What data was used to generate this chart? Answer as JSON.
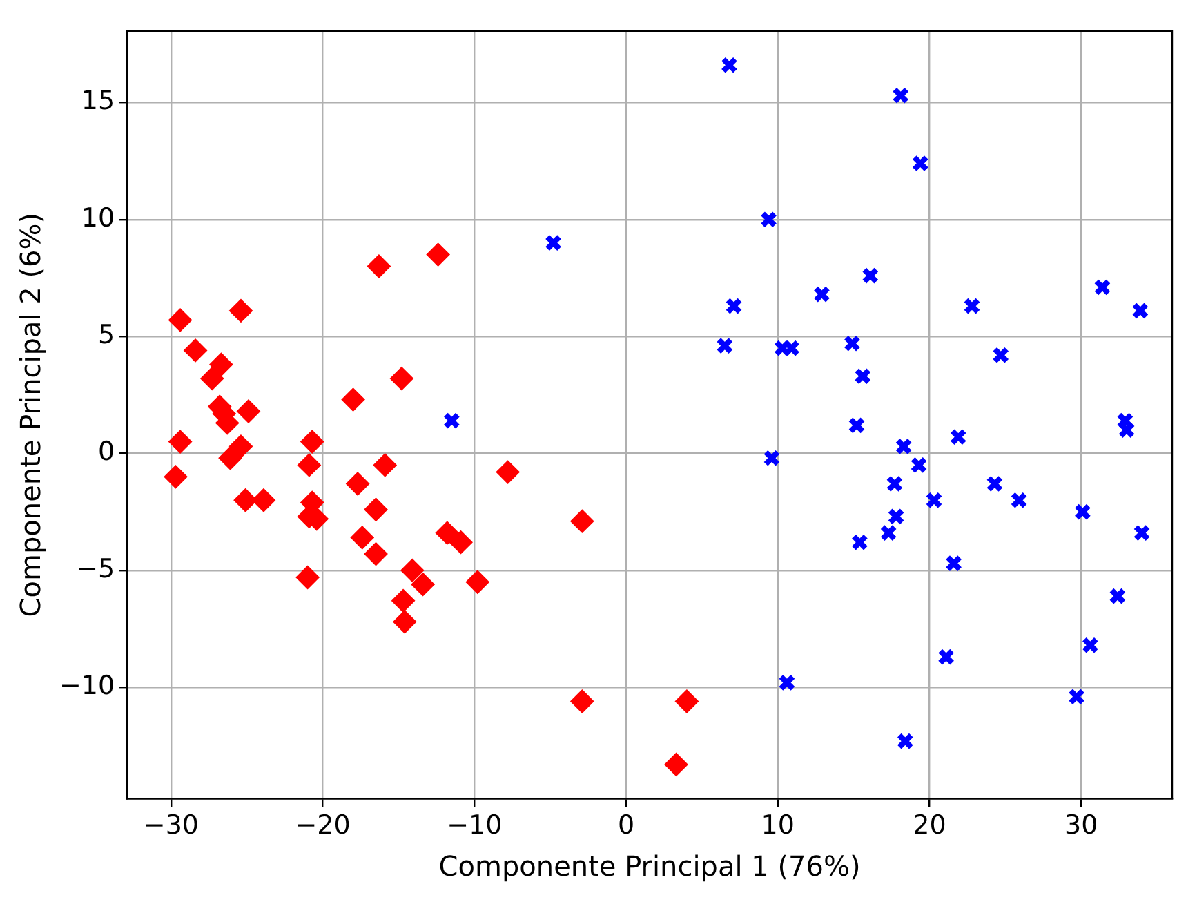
{
  "chart_data": {
    "type": "scatter",
    "xlabel": "Componente Principal 1 (76%)",
    "ylabel": "Componente Principal 2 (6%)",
    "xlim": [
      -32.9,
      36.0
    ],
    "ylim": [
      -14.76,
      18.06
    ],
    "xticks": [
      {
        "value": -30,
        "label": "−30"
      },
      {
        "value": -20,
        "label": "−20"
      },
      {
        "value": -10,
        "label": "−10"
      },
      0,
      10,
      20,
      30
    ],
    "yticks": [
      {
        "value": -10,
        "label": "−10"
      },
      {
        "value": -5,
        "label": "−5"
      },
      0,
      5,
      10,
      15
    ],
    "grid": true,
    "legend": false,
    "series": [
      {
        "color": "#ff0000",
        "marker": "diamond",
        "x": [
          -29.4,
          -28.4,
          -26.7,
          -27.3,
          -25.4,
          -29.4,
          -29.7,
          -26.8,
          -26.5,
          -26.3,
          -24.9,
          -25.4,
          -26.1,
          -25.1,
          -23.9,
          -20.7,
          -20.9,
          -20.7,
          -20.4,
          -20.9,
          -21.0,
          -18.0,
          -17.7,
          -17.4,
          -16.5,
          -16.5,
          -15.9,
          -16.3,
          -14.8,
          -12.4,
          -14.1,
          -13.4,
          -14.7,
          -14.6,
          -11.8,
          -10.9,
          -9.8,
          -7.8,
          -2.9,
          -2.9,
          4.0,
          3.3
        ],
        "values": [
          5.7,
          4.4,
          3.8,
          3.2,
          6.1,
          0.5,
          -1.0,
          2.0,
          1.7,
          1.3,
          1.8,
          0.3,
          -0.2,
          -2.0,
          -2.0,
          0.5,
          -0.5,
          -2.1,
          -2.8,
          -2.7,
          -5.3,
          2.3,
          -1.3,
          -3.6,
          -2.4,
          -4.3,
          -0.5,
          8.0,
          3.2,
          8.5,
          -5.0,
          -5.6,
          -6.3,
          -7.2,
          -3.4,
          -3.8,
          -5.5,
          -0.8,
          -2.9,
          -10.6,
          -10.6,
          -13.3
        ]
      },
      {
        "color": "#0000ff",
        "marker": "cross",
        "x": [
          6.8,
          18.1,
          19.4,
          9.4,
          -4.8,
          16.1,
          12.9,
          7.1,
          22.8,
          31.4,
          33.9,
          6.5,
          10.3,
          10.9,
          14.9,
          24.7,
          15.6,
          -11.5,
          15.2,
          32.9,
          33.0,
          18.3,
          21.9,
          9.6,
          19.3,
          17.7,
          24.3,
          20.3,
          25.9,
          17.8,
          30.1,
          17.3,
          34.0,
          15.4,
          21.6,
          32.4,
          30.6,
          21.1,
          10.6,
          29.7,
          18.4
        ],
        "values": [
          16.6,
          15.3,
          12.4,
          10.0,
          9.0,
          7.6,
          6.8,
          6.3,
          6.3,
          7.1,
          6.1,
          4.6,
          4.5,
          4.5,
          4.7,
          4.2,
          3.3,
          1.4,
          1.2,
          1.4,
          1.0,
          0.3,
          0.7,
          -0.2,
          -0.5,
          -1.3,
          -1.3,
          -2.0,
          -2.0,
          -2.7,
          -2.5,
          -3.4,
          -3.4,
          -3.8,
          -4.7,
          -6.1,
          -8.2,
          -8.7,
          -9.8,
          -10.4,
          -12.3
        ]
      }
    ]
  }
}
